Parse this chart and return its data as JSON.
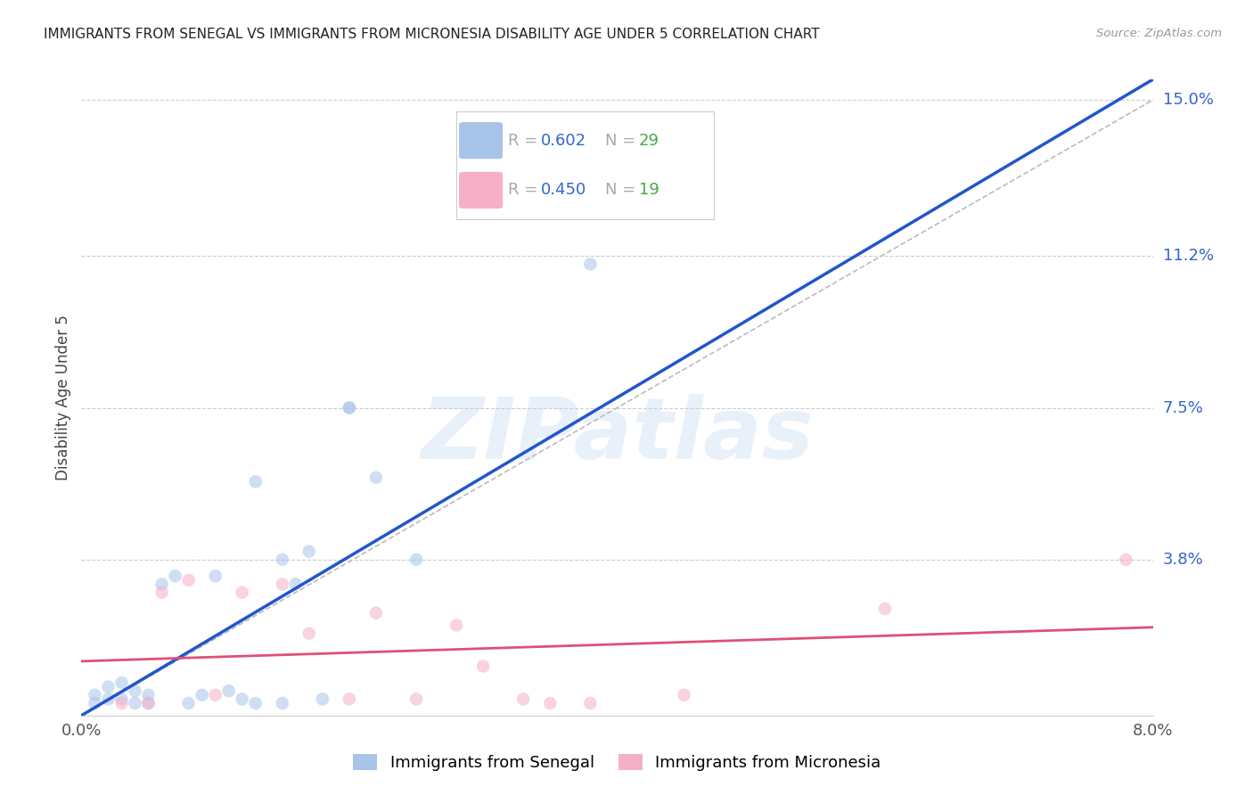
{
  "title": "IMMIGRANTS FROM SENEGAL VS IMMIGRANTS FROM MICRONESIA DISABILITY AGE UNDER 5 CORRELATION CHART",
  "source": "Source: ZipAtlas.com",
  "ylabel": "Disability Age Under 5",
  "xlim": [
    0.0,
    0.08
  ],
  "ylim": [
    0.0,
    0.155
  ],
  "yticks_right": [
    0.038,
    0.075,
    0.112,
    0.15
  ],
  "ytick_right_labels": [
    "3.8%",
    "7.5%",
    "11.2%",
    "15.0%"
  ],
  "xtick_positions": [
    0.0,
    0.02,
    0.04,
    0.06,
    0.08
  ],
  "xtick_labels": [
    "0.0%",
    "",
    "",
    "",
    "8.0%"
  ],
  "grid_color": "#cccccc",
  "bg_color": "#ffffff",
  "senegal_color": "#a8c4e8",
  "micronesia_color": "#f5b0c8",
  "senegal_line_color": "#2255cc",
  "micronesia_line_color": "#e05075",
  "senegal_R": "0.602",
  "senegal_N": "29",
  "micronesia_R": "0.450",
  "micronesia_N": "19",
  "label_color_blue": "#3366cc",
  "label_color_green": "#44aa44",
  "legend_label_senegal": "Immigrants from Senegal",
  "legend_label_micronesia": "Immigrants from Micronesia",
  "watermark": "ZIPatlas",
  "marker_size": 110,
  "marker_alpha": 0.55,
  "senegal_x": [
    0.001,
    0.001,
    0.002,
    0.002,
    0.003,
    0.003,
    0.004,
    0.004,
    0.005,
    0.005,
    0.006,
    0.007,
    0.008,
    0.009,
    0.01,
    0.011,
    0.012,
    0.013,
    0.015,
    0.016,
    0.018,
    0.02,
    0.022,
    0.025,
    0.013,
    0.015,
    0.017,
    0.02,
    0.038
  ],
  "senegal_y": [
    0.003,
    0.005,
    0.004,
    0.007,
    0.004,
    0.008,
    0.003,
    0.006,
    0.003,
    0.005,
    0.032,
    0.034,
    0.003,
    0.005,
    0.034,
    0.006,
    0.004,
    0.057,
    0.038,
    0.032,
    0.004,
    0.075,
    0.058,
    0.038,
    0.003,
    0.003,
    0.04,
    0.075,
    0.11
  ],
  "micronesia_x": [
    0.003,
    0.005,
    0.006,
    0.008,
    0.01,
    0.012,
    0.015,
    0.017,
    0.02,
    0.022,
    0.025,
    0.028,
    0.03,
    0.033,
    0.035,
    0.038,
    0.045,
    0.06,
    0.078
  ],
  "micronesia_y": [
    0.003,
    0.003,
    0.03,
    0.033,
    0.005,
    0.03,
    0.032,
    0.02,
    0.004,
    0.025,
    0.004,
    0.022,
    0.012,
    0.004,
    0.003,
    0.003,
    0.005,
    0.026,
    0.038
  ],
  "diag_line_color": "#bbbbbb",
  "diag_line_style": "--"
}
